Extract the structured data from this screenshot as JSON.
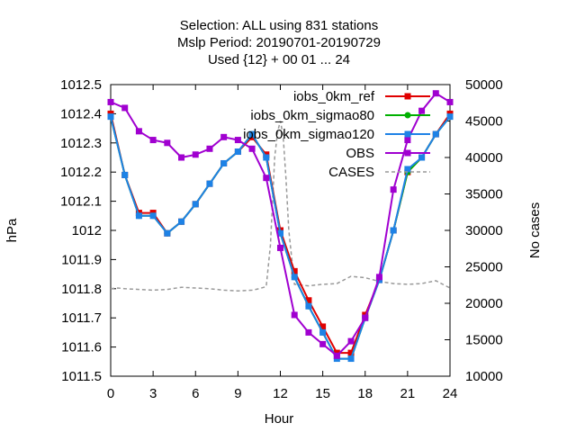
{
  "chart_data": {
    "type": "line",
    "title_lines": [
      "Selection: ALL using   831 stations",
      "Mslp   Period: 20190701-20190729",
      "Used {12} + 00 01 ... 24"
    ],
    "xlabel": "Hour",
    "ylabel": "hPa",
    "y2label": "No cases",
    "xlim": [
      0,
      24
    ],
    "ylim": [
      1011.5,
      1012.5
    ],
    "y2lim": [
      10000,
      50000
    ],
    "xticks": [
      "0",
      "3",
      "6",
      "9",
      "12",
      "15",
      "18",
      "21",
      "24"
    ],
    "yticks": [
      "1011.5",
      "1011.6",
      "1011.7",
      "1011.8",
      "1011.9",
      "1012",
      "1012.1",
      "1012.2",
      "1012.3",
      "1012.4",
      "1012.5"
    ],
    "y2ticks": [
      "10000",
      "15000",
      "20000",
      "25000",
      "30000",
      "35000",
      "40000",
      "45000",
      "50000"
    ],
    "grid": false,
    "legend_position": "top-right",
    "x": [
      0,
      1,
      2,
      3,
      4,
      5,
      6,
      7,
      8,
      9,
      10,
      11,
      12,
      13,
      14,
      15,
      16,
      17,
      18,
      19,
      20,
      21,
      22,
      23,
      24
    ],
    "series": [
      {
        "name": "iobs_0km_ref",
        "color": "#e00000",
        "marker": "square",
        "axis": "y",
        "values": [
          1012.4,
          1012.19,
          1012.06,
          1012.06,
          1011.99,
          1012.03,
          1012.09,
          1012.16,
          1012.23,
          1012.27,
          1012.32,
          1012.26,
          1012.0,
          1011.86,
          1011.76,
          1011.67,
          1011.58,
          1011.58,
          1011.71,
          1011.83,
          1012.0,
          1012.2,
          1012.25,
          1012.33,
          1012.4
        ]
      },
      {
        "name": "iobs_0km_sigmao80",
        "color": "#00b000",
        "marker": "circle",
        "axis": "y",
        "values": [
          1012.39,
          1012.19,
          1012.05,
          1012.05,
          1011.99,
          1012.03,
          1012.09,
          1012.16,
          1012.23,
          1012.27,
          1012.33,
          1012.25,
          1011.99,
          1011.84,
          1011.74,
          1011.65,
          1011.56,
          1011.56,
          1011.7,
          1011.83,
          1012.0,
          1012.2,
          1012.25,
          1012.33,
          1012.39
        ]
      },
      {
        "name": "iobs_0km_sigmao120",
        "color": "#1e82e6",
        "marker": "square",
        "axis": "y",
        "values": [
          1012.39,
          1012.19,
          1012.05,
          1012.05,
          1011.99,
          1012.03,
          1012.09,
          1012.16,
          1012.23,
          1012.27,
          1012.33,
          1012.25,
          1011.99,
          1011.84,
          1011.74,
          1011.65,
          1011.56,
          1011.56,
          1011.7,
          1011.83,
          1012.0,
          1012.21,
          1012.25,
          1012.33,
          1012.39
        ]
      },
      {
        "name": "OBS",
        "color": "#a000d0",
        "marker": "square",
        "axis": "y",
        "values": [
          1012.44,
          1012.42,
          1012.34,
          1012.31,
          1012.3,
          1012.25,
          1012.26,
          1012.28,
          1012.32,
          1012.31,
          1012.28,
          1012.18,
          1011.94,
          1011.71,
          1011.65,
          1011.61,
          1011.57,
          1011.62,
          1011.7,
          1011.84,
          1012.14,
          1012.31,
          1012.41,
          1012.47,
          1012.44
        ]
      },
      {
        "name": "CASES",
        "color": "#999999",
        "marker": "none",
        "dashed": true,
        "axis": "y2",
        "x": [
          0,
          0.5,
          1,
          2,
          3,
          4,
          5,
          6,
          7,
          8,
          9,
          10,
          10.5,
          11,
          11.3,
          11.6,
          11.8,
          12,
          12.2,
          12.4,
          12.6,
          13,
          14,
          15,
          16,
          17,
          18,
          19,
          20,
          21,
          22,
          23,
          24
        ],
        "values": [
          22000,
          22100,
          22000,
          21900,
          21800,
          21900,
          22200,
          22100,
          22000,
          21800,
          21700,
          21800,
          22000,
          22300,
          28000,
          40000,
          43500,
          45000,
          43000,
          37000,
          30000,
          22600,
          22400,
          22600,
          22700,
          23700,
          23500,
          23000,
          22700,
          22600,
          22700,
          23100,
          22100
        ]
      }
    ]
  }
}
